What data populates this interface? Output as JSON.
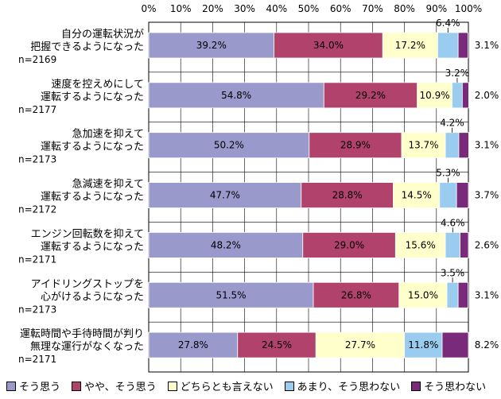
{
  "chart_data": {
    "type": "bar",
    "orientation": "horizontal",
    "stacked": true,
    "title": "",
    "xlabel": "",
    "ylabel": "",
    "xlim": [
      0,
      100
    ],
    "x_ticks": [
      "0%",
      "10%",
      "20%",
      "30%",
      "40%",
      "50%",
      "60%",
      "70%",
      "80%",
      "90%",
      "100%"
    ],
    "grid": true,
    "legend_position": "bottom",
    "categories": [
      {
        "lines": [
          "自分の運転状況が",
          "把握できるようになった"
        ],
        "n": "n=2169"
      },
      {
        "lines": [
          "速度を控えめにして",
          "運転するようになった"
        ],
        "n": "n=2177"
      },
      {
        "lines": [
          "急加速を抑えて",
          "運転するようになった"
        ],
        "n": "n=2173"
      },
      {
        "lines": [
          "急減速を抑えて",
          "運転するようになった"
        ],
        "n": "n=2172"
      },
      {
        "lines": [
          "エンジン回転数を抑えて",
          "運転するようになった"
        ],
        "n": "n=2171"
      },
      {
        "lines": [
          "アイドリングストップを",
          "心がけるようになった"
        ],
        "n": "n=2173"
      },
      {
        "lines": [
          "運転時間や手待時間が判り",
          "無理な運行がなくなった"
        ],
        "n": "n=2171"
      }
    ],
    "series": [
      {
        "name": "そう思う",
        "color": "#9999cc",
        "values": [
          39.2,
          54.8,
          50.2,
          47.7,
          48.2,
          51.5,
          27.8
        ],
        "labels": [
          "39.2%",
          "54.8%",
          "50.2%",
          "47.7%",
          "48.2%",
          "51.5%",
          "27.8%"
        ]
      },
      {
        "name": "やや、そう思う",
        "color": "#b0426b",
        "values": [
          34.0,
          29.2,
          28.9,
          28.8,
          29.0,
          26.8,
          24.5
        ],
        "labels": [
          "34.0%",
          "29.2%",
          "28.9%",
          "28.8%",
          "29.0%",
          "26.8%",
          "24.5%"
        ]
      },
      {
        "name": "どちらとも言えない",
        "color": "#ffffcc",
        "values": [
          17.2,
          10.9,
          13.7,
          14.5,
          15.6,
          15.0,
          27.7
        ],
        "labels": [
          "17.2%",
          "10.9%",
          "13.7%",
          "14.5%",
          "15.6%",
          "15.0%",
          "27.7%"
        ]
      },
      {
        "name": "あまり、そう思わない",
        "color": "#99ccee",
        "values": [
          6.4,
          3.2,
          4.2,
          5.3,
          4.6,
          3.5,
          11.8
        ],
        "labels": [
          "6.4%",
          "3.2%",
          "4.2%",
          "5.3%",
          "4.6%",
          "3.5%",
          "11.8%"
        ]
      },
      {
        "name": "そう思わない",
        "color": "#7a2a7a",
        "values": [
          3.1,
          2.0,
          3.1,
          3.7,
          2.6,
          3.1,
          8.2
        ],
        "labels": [
          "3.1%",
          "2.0%",
          "3.1%",
          "3.7%",
          "2.6%",
          "3.1%",
          "8.2%"
        ]
      }
    ]
  }
}
